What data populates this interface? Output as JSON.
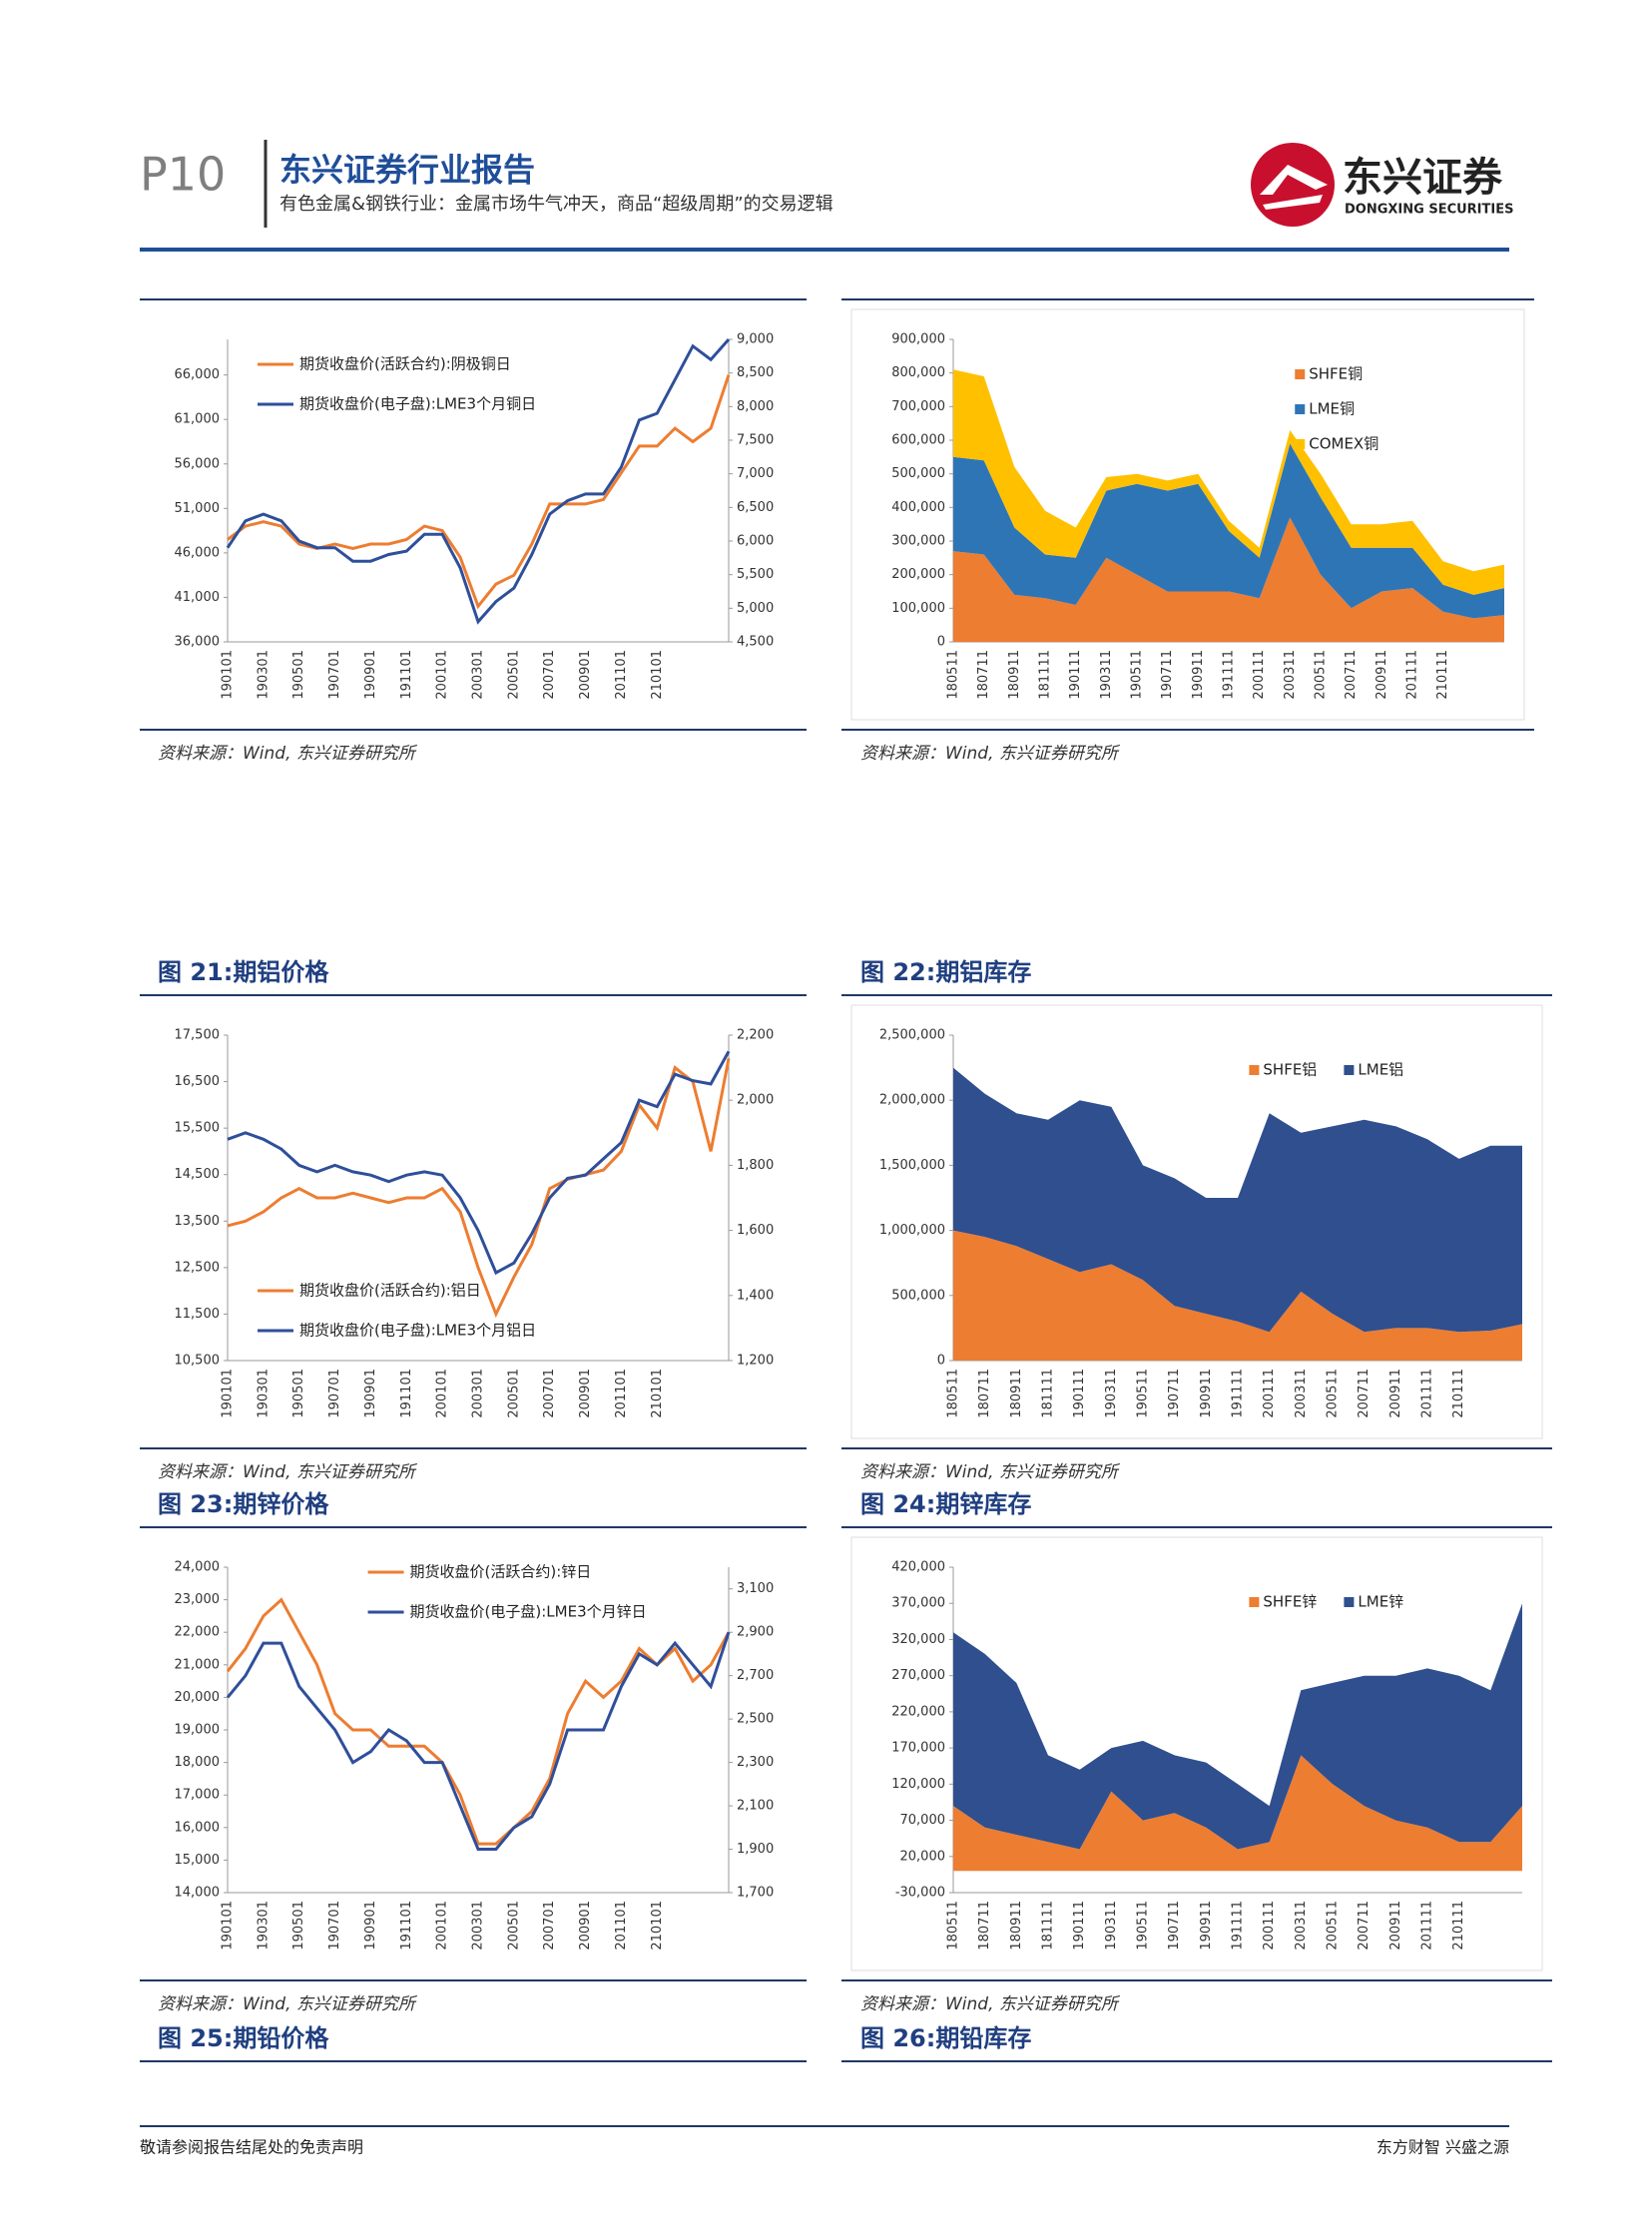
{
  "header": {
    "page": "P10",
    "title": "东兴证券行业报告",
    "subtitle": "有色金属&钢铁行业：金属市场牛气冲天，商品“超级周期”的交易逻辑"
  },
  "logo": {
    "name": "东兴证券",
    "english": "DONGXING SECURITIES"
  },
  "captions": [
    "图 21:期铝价格",
    "图 22:期铝库存",
    "图 23:期锌价格",
    "图 24:期锌库存",
    "图 25:期铅价格",
    "图 26:期铅库存"
  ],
  "sources": [
    "资料来源：Wind, 东兴证券研究所",
    "资料来源：Wind, 东兴证券研究所",
    "资料来源：Wind, 东兴证券研究所",
    "资料来源：Wind, 东兴证券研究所",
    "资料来源：Wind, 东兴证券研究所",
    "资料来源：Wind, 东兴证券研究所"
  ],
  "footer": {
    "left": "敬请参阅报告结尾处的免责声明",
    "right": "东方财智 兴盛之源"
  },
  "chart_data": [
    {
      "type": "line",
      "legend": "upper left",
      "categories": [
        "190101",
        null,
        "190301",
        null,
        "190501",
        null,
        "190701",
        null,
        "190901",
        null,
        "191101",
        null,
        "200101",
        null,
        "200301",
        null,
        "200501",
        null,
        "200701",
        null,
        "200901",
        null,
        "201101",
        null,
        "210101",
        null,
        null,
        null,
        null
      ],
      "ylim": [
        36000,
        70000
      ],
      "yticks": [
        {
          "value": 36000,
          "label": "36,000"
        },
        {
          "value": 41000,
          "label": "41,000"
        },
        {
          "value": 46000,
          "label": "46,000"
        },
        {
          "value": 51000,
          "label": "51,000"
        },
        {
          "value": 56000,
          "label": "56,000"
        },
        {
          "value": 61000,
          "label": "61,000"
        },
        {
          "value": 66000,
          "label": "66,000"
        }
      ],
      "y2lim": [
        4500,
        9000
      ],
      "y2ticks": [
        {
          "value": 4500,
          "label": "4,500"
        },
        {
          "value": 5000,
          "label": "5,000"
        },
        {
          "value": 5500,
          "label": "5,500"
        },
        {
          "value": 6000,
          "label": "6,000"
        },
        {
          "value": 6500,
          "label": "6,500"
        },
        {
          "value": 7000,
          "label": "7,000"
        },
        {
          "value": 7500,
          "label": "7,500"
        },
        {
          "value": 8000,
          "label": "8,000"
        },
        {
          "value": 8500,
          "label": "8,500"
        },
        {
          "value": 9000,
          "label": "9,000"
        }
      ],
      "series": [
        {
          "name": "期货收盘价(活跃合约):阴极铜日",
          "color": "#ed7d31",
          "values": [
            47500,
            49000,
            49500,
            49000,
            47000,
            46500,
            47000,
            46500,
            47000,
            47000,
            47500,
            49000,
            48500,
            45500,
            40000,
            42500,
            43500,
            47000,
            51500,
            51500,
            51500,
            52000,
            55000,
            58000,
            58000,
            60000,
            58500,
            60000,
            66000
          ]
        },
        {
          "name": "期货收盘价(电子盘):LME3个月铜日",
          "color": "#2f4f9a",
          "axis": "y2",
          "values": [
            5900,
            6300,
            6400,
            6300,
            6000,
            5900,
            5900,
            5700,
            5700,
            5800,
            5850,
            6100,
            6100,
            5600,
            4800,
            5100,
            5300,
            5800,
            6400,
            6600,
            6700,
            6700,
            7100,
            7800,
            7900,
            8400,
            8900,
            8700,
            9000
          ]
        }
      ]
    },
    {
      "type": "area",
      "legend": "upper right",
      "categories": [
        "180511",
        "180711",
        "180911",
        "181111",
        "190111",
        "190311",
        "190511",
        "190711",
        "190911",
        "191111",
        "200111",
        "200311",
        "200511",
        "200711",
        "200911",
        "201111",
        "210111",
        null,
        null
      ],
      "ylim": [
        0,
        900000
      ],
      "yticks": [
        0,
        {
          "value": 100000,
          "label": "100,000"
        },
        {
          "value": 200000,
          "label": "200,000"
        },
        {
          "value": 300000,
          "label": "300,000"
        },
        {
          "value": 400000,
          "label": "400,000"
        },
        {
          "value": 500000,
          "label": "500,000"
        },
        {
          "value": 600000,
          "label": "600,000"
        },
        {
          "value": 700000,
          "label": "700,000"
        },
        {
          "value": 800000,
          "label": "800,000"
        },
        {
          "value": 900000,
          "label": "900,000"
        }
      ],
      "series": [
        {
          "name": "SHFE铜",
          "color": "#ed7d31",
          "values": [
            270000,
            260000,
            140000,
            130000,
            110000,
            250000,
            200000,
            150000,
            150000,
            150000,
            130000,
            370000,
            200000,
            100000,
            150000,
            160000,
            90000,
            70000,
            80000
          ]
        },
        {
          "name": "LME铜",
          "color": "#2e75b6",
          "values": [
            280000,
            280000,
            200000,
            130000,
            140000,
            200000,
            270000,
            300000,
            320000,
            180000,
            120000,
            220000,
            230000,
            180000,
            130000,
            120000,
            80000,
            70000,
            80000
          ]
        },
        {
          "name": "COMEX铜",
          "color": "#ffc000",
          "values": [
            260000,
            250000,
            180000,
            130000,
            90000,
            40000,
            30000,
            30000,
            30000,
            30000,
            30000,
            40000,
            70000,
            70000,
            70000,
            80000,
            70000,
            70000,
            70000
          ]
        }
      ]
    },
    {
      "type": "line",
      "legend": "lower left",
      "categories": [
        "190101",
        null,
        "190301",
        null,
        "190501",
        null,
        "190701",
        null,
        "190901",
        null,
        "191101",
        null,
        "200101",
        null,
        "200301",
        null,
        "200501",
        null,
        "200701",
        null,
        "200901",
        null,
        "201101",
        null,
        "210101",
        null,
        null,
        null,
        null
      ],
      "ylim": [
        10500,
        17500
      ],
      "yticks": [
        {
          "value": 10500,
          "label": "10,500"
        },
        {
          "value": 11500,
          "label": "11,500"
        },
        {
          "value": 12500,
          "label": "12,500"
        },
        {
          "value": 13500,
          "label": "13,500"
        },
        {
          "value": 14500,
          "label": "14,500"
        },
        {
          "value": 15500,
          "label": "15,500"
        },
        {
          "value": 16500,
          "label": "16,500"
        },
        {
          "value": 17500,
          "label": "17,500"
        }
      ],
      "y2lim": [
        1200,
        2200
      ],
      "y2ticks": [
        {
          "value": 1200,
          "label": "1,200"
        },
        {
          "value": 1400,
          "label": "1,400"
        },
        {
          "value": 1600,
          "label": "1,600"
        },
        {
          "value": 1800,
          "label": "1,800"
        },
        {
          "value": 2000,
          "label": "2,000"
        },
        {
          "value": 2200,
          "label": "2,200"
        }
      ],
      "series": [
        {
          "name": "期货收盘价(活跃合约):铝日",
          "color": "#ed7d31",
          "values": [
            13400,
            13500,
            13700,
            14000,
            14200,
            14000,
            14000,
            14100,
            14000,
            13900,
            14000,
            14000,
            14200,
            13700,
            12500,
            11500,
            12300,
            13000,
            14200,
            14400,
            14500,
            14600,
            15000,
            16000,
            15500,
            16800,
            16500,
            15000,
            17000
          ]
        },
        {
          "name": "期货收盘价(电子盘):LME3个月铝日",
          "color": "#2f4f9a",
          "axis": "y2",
          "values": [
            1880,
            1900,
            1880,
            1850,
            1800,
            1780,
            1800,
            1780,
            1770,
            1750,
            1770,
            1780,
            1770,
            1700,
            1600,
            1470,
            1500,
            1590,
            1700,
            1760,
            1770,
            1820,
            1870,
            2000,
            1980,
            2080,
            2060,
            2050,
            2150
          ]
        }
      ]
    },
    {
      "type": "area",
      "legend": "upper right",
      "categories": [
        "180511",
        "180711",
        "180911",
        "181111",
        "190111",
        "190311",
        "190511",
        "190711",
        "190911",
        "191111",
        "200111",
        "200311",
        "200511",
        "200711",
        "200911",
        "201111",
        "210111",
        null,
        null
      ],
      "ylim": [
        0,
        2500000
      ],
      "yticks": [
        0,
        {
          "value": 500000,
          "label": "500,000"
        },
        {
          "value": 1000000,
          "label": "1,000,000"
        },
        {
          "value": 1500000,
          "label": "1,500,000"
        },
        {
          "value": 2000000,
          "label": "2,000,000"
        },
        {
          "value": 2500000,
          "label": "2,500,000"
        }
      ],
      "series": [
        {
          "name": "SHFE铝",
          "color": "#ed7d31",
          "values": [
            1000000,
            950000,
            880000,
            780000,
            680000,
            740000,
            620000,
            420000,
            360000,
            300000,
            220000,
            530000,
            360000,
            220000,
            250000,
            250000,
            220000,
            230000,
            280000
          ]
        },
        {
          "name": "LME铝",
          "color": "#2f4f8f",
          "values": [
            1250000,
            1100000,
            1020000,
            1070000,
            1320000,
            1210000,
            880000,
            980000,
            890000,
            950000,
            1680000,
            1220000,
            1440000,
            1630000,
            1550000,
            1450000,
            1330000,
            1420000,
            1370000
          ]
        }
      ]
    },
    {
      "type": "line",
      "legend": "upper center",
      "categories": [
        "190101",
        null,
        "190301",
        null,
        "190501",
        null,
        "190701",
        null,
        "190901",
        null,
        "191101",
        null,
        "200101",
        null,
        "200301",
        null,
        "200501",
        null,
        "200701",
        null,
        "200901",
        null,
        "201101",
        null,
        "210101",
        null,
        null,
        null,
        null
      ],
      "ylim": [
        14000,
        24000
      ],
      "yticks": [
        {
          "value": 14000,
          "label": "14,000"
        },
        {
          "value": 15000,
          "label": "15,000"
        },
        {
          "value": 16000,
          "label": "16,000"
        },
        {
          "value": 17000,
          "label": "17,000"
        },
        {
          "value": 18000,
          "label": "18,000"
        },
        {
          "value": 19000,
          "label": "19,000"
        },
        {
          "value": 20000,
          "label": "20,000"
        },
        {
          "value": 21000,
          "label": "21,000"
        },
        {
          "value": 22000,
          "label": "22,000"
        },
        {
          "value": 23000,
          "label": "23,000"
        },
        {
          "value": 24000,
          "label": "24,000"
        }
      ],
      "y2lim": [
        1700,
        3200
      ],
      "y2ticks": [
        {
          "value": 1700,
          "label": "1,700"
        },
        {
          "value": 1900,
          "label": "1,900"
        },
        {
          "value": 2100,
          "label": "2,100"
        },
        {
          "value": 2300,
          "label": "2,300"
        },
        {
          "value": 2500,
          "label": "2,500"
        },
        {
          "value": 2700,
          "label": "2,700"
        },
        {
          "value": 2900,
          "label": "2,900"
        },
        {
          "value": 3100,
          "label": "3,100"
        }
      ],
      "series": [
        {
          "name": "期货收盘价(活跃合约):锌日",
          "color": "#ed7d31",
          "values": [
            20800,
            21500,
            22500,
            23000,
            22000,
            21000,
            19500,
            19000,
            19000,
            18500,
            18500,
            18500,
            18000,
            17000,
            15500,
            15500,
            16000,
            16500,
            17500,
            19500,
            20500,
            20000,
            20500,
            21500,
            21000,
            21500,
            20500,
            21000,
            22000
          ]
        },
        {
          "name": "期货收盘价(电子盘):LME3个月锌日",
          "color": "#2f4f9a",
          "axis": "y2",
          "values": [
            2600,
            2700,
            2850,
            2850,
            2650,
            2550,
            2450,
            2300,
            2350,
            2450,
            2400,
            2300,
            2300,
            2100,
            1900,
            1900,
            2000,
            2050,
            2200,
            2450,
            2450,
            2450,
            2650,
            2800,
            2750,
            2850,
            2750,
            2650,
            2900
          ]
        }
      ]
    },
    {
      "type": "area",
      "legend": "upper right",
      "categories": [
        "180511",
        "180711",
        "180911",
        "181111",
        "190111",
        "190311",
        "190511",
        "190711",
        "190911",
        "191111",
        "200111",
        "200311",
        "200511",
        "200711",
        "200911",
        "201111",
        "210111",
        null,
        null
      ],
      "ylim": [
        -30000,
        420000
      ],
      "yticks": [
        {
          "value": -30000,
          "label": "-30,000"
        },
        {
          "value": 20000,
          "label": "20,000"
        },
        {
          "value": 70000,
          "label": "70,000"
        },
        {
          "value": 120000,
          "label": "120,000"
        },
        {
          "value": 170000,
          "label": "170,000"
        },
        {
          "value": 220000,
          "label": "220,000"
        },
        {
          "value": 270000,
          "label": "270,000"
        },
        {
          "value": 320000,
          "label": "320,000"
        },
        {
          "value": 370000,
          "label": "370,000"
        },
        {
          "value": 420000,
          "label": "420,000"
        }
      ],
      "series": [
        {
          "name": "SHFE锌",
          "color": "#ed7d31",
          "values": [
            90000,
            60000,
            50000,
            40000,
            30000,
            110000,
            70000,
            80000,
            60000,
            30000,
            40000,
            160000,
            120000,
            90000,
            70000,
            60000,
            40000,
            40000,
            90000
          ]
        },
        {
          "name": "LME锌",
          "color": "#2f4f8f",
          "values": [
            240000,
            240000,
            210000,
            120000,
            110000,
            60000,
            110000,
            80000,
            90000,
            90000,
            50000,
            90000,
            140000,
            180000,
            200000,
            220000,
            230000,
            210000,
            280000
          ]
        }
      ]
    }
  ]
}
